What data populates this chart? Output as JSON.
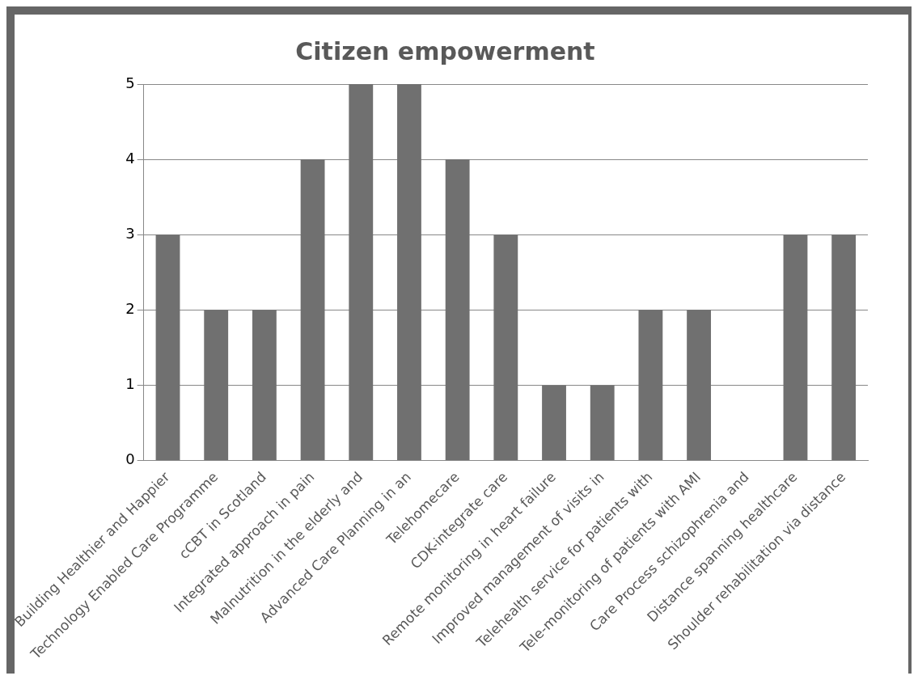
{
  "chart_data": {
    "type": "bar",
    "title": "Citizen empowerment",
    "categories": [
      "Building Healthier and Happier",
      "Technology Enabled Care Programme",
      "cCBT in Scotland",
      "Integrated approach in pain",
      "Malnutrition in the elderly and",
      "Advanced Care Planning in an",
      "Telehomecare",
      "CDK-integrate care",
      "Remote monitoring in heart failure",
      "Improved management of visits in",
      "Telehealth service for patients with",
      "Tele-monitoring of patients with AMI",
      "Care Process schizophrenia and",
      "Distance spanning healthcare",
      "Shoulder rehabilitation via distance"
    ],
    "values": [
      3,
      2,
      2,
      4,
      5,
      5,
      4,
      3,
      1,
      1,
      2,
      2,
      0,
      3,
      3
    ],
    "color": "#707070",
    "ylim": [
      0,
      5
    ],
    "yticks": [
      0,
      1,
      2,
      3,
      4,
      5
    ],
    "grid": "y",
    "legend": false
  }
}
